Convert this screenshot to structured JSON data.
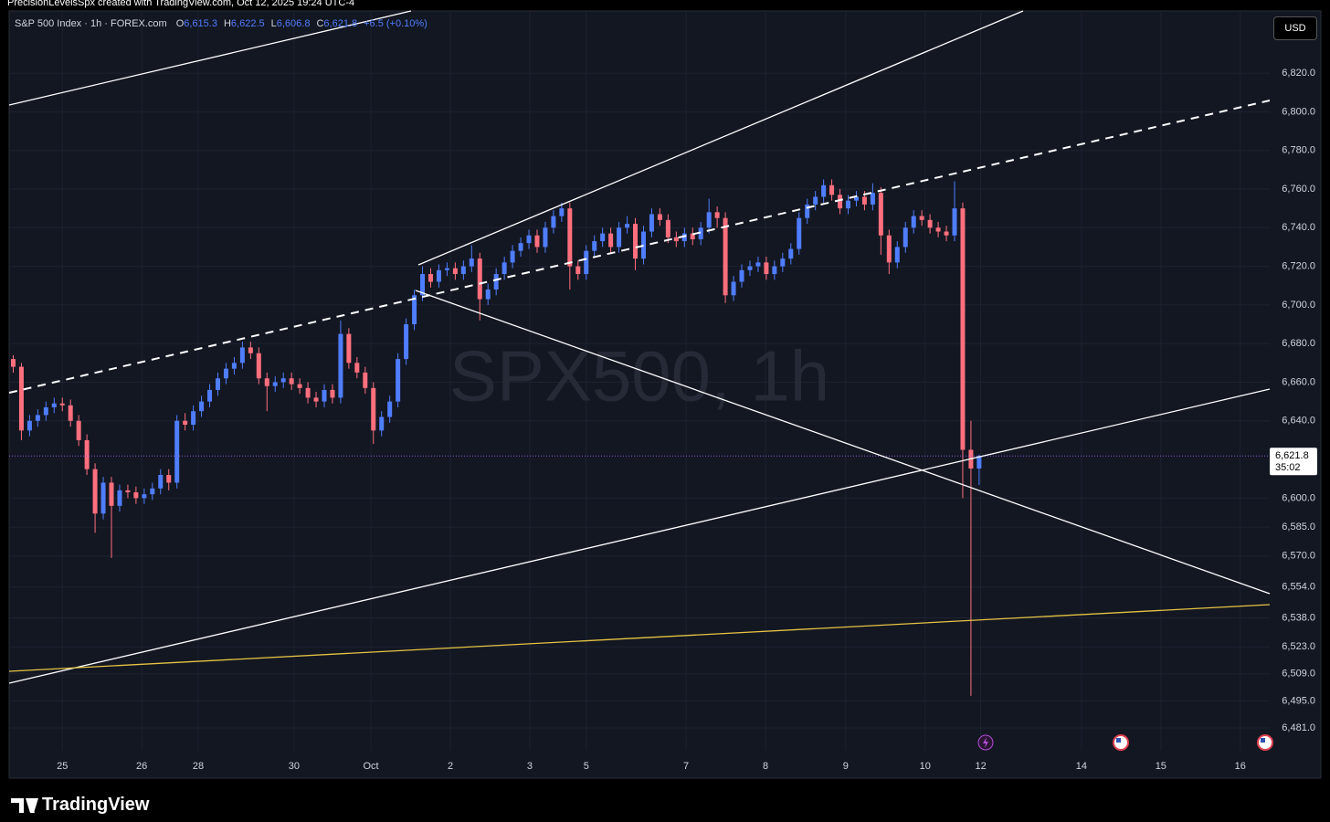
{
  "header": {
    "caption": "PrecisionLevelsSpx created with TradingView.com, Oct 12, 2025 19:24 UTC-4"
  },
  "legend": {
    "symbol": "S&P 500 Index · 1h · FOREX.com",
    "ohlc": [
      {
        "key": "O",
        "value": "6,615.3"
      },
      {
        "key": "H",
        "value": "6,622.5"
      },
      {
        "key": "L",
        "value": "6,606.8"
      },
      {
        "key": "C",
        "value": "6,621.8"
      }
    ],
    "change": "+6.5 (+0.10%)"
  },
  "currency": "USD",
  "watermark": "SPX500, 1h",
  "price_label": {
    "price": "6,621.8",
    "countdown": "35:02"
  },
  "footer": {
    "brand": "TradingView"
  },
  "chart_data": {
    "type": "candlestick",
    "up_color": "#4f7dff",
    "down_color": "#ff6f7d",
    "grid": true,
    "xlim": [
      -0.5,
      153.5
    ],
    "xticks": [
      {
        "value": 6,
        "label": "25"
      },
      {
        "value": 15.7,
        "label": "26"
      },
      {
        "value": 22.6,
        "label": "28"
      },
      {
        "value": 34.3,
        "label": "30"
      },
      {
        "value": 43.7,
        "label": "Oct"
      },
      {
        "value": 53.4,
        "label": "2"
      },
      {
        "value": 63.1,
        "label": "3"
      },
      {
        "value": 70,
        "label": "5"
      },
      {
        "value": 82.2,
        "label": "7"
      },
      {
        "value": 91.9,
        "label": "8"
      },
      {
        "value": 101.7,
        "label": "9"
      },
      {
        "value": 111.4,
        "label": "10"
      },
      {
        "value": 118.2,
        "label": "12"
      },
      {
        "value": 130.5,
        "label": "14"
      },
      {
        "value": 140.2,
        "label": "15"
      },
      {
        "value": 149.9,
        "label": "16"
      }
    ],
    "ylim": [
      6469.2,
      6852.2
    ],
    "yticks": [
      {
        "value": 6820,
        "label": "6,820.0"
      },
      {
        "value": 6800,
        "label": "6,800.0"
      },
      {
        "value": 6780,
        "label": "6,780.0"
      },
      {
        "value": 6760,
        "label": "6,760.0"
      },
      {
        "value": 6740,
        "label": "6,740.0"
      },
      {
        "value": 6720,
        "label": "6,720.0"
      },
      {
        "value": 6700,
        "label": "6,700.0"
      },
      {
        "value": 6680,
        "label": "6,680.0"
      },
      {
        "value": 6660,
        "label": "6,660.0"
      },
      {
        "value": 6640,
        "label": "6,640.0"
      },
      {
        "value": 6600,
        "label": "6,600.0"
      },
      {
        "value": 6585,
        "label": "6,585.0"
      },
      {
        "value": 6570,
        "label": "6,570.0"
      },
      {
        "value": 6554,
        "label": "6,554.0"
      },
      {
        "value": 6538,
        "label": "6,538.0"
      },
      {
        "value": 6523,
        "label": "6,523.0"
      },
      {
        "value": 6509,
        "label": "6,509.0"
      },
      {
        "value": 6495,
        "label": "6,495.0"
      },
      {
        "value": 6481,
        "label": "6,481.0"
      }
    ],
    "candles": [
      [
        6672,
        6674,
        6665,
        6668
      ],
      [
        6668,
        6670,
        6630,
        6635
      ],
      [
        6635,
        6643,
        6632,
        6640
      ],
      [
        6640,
        6646,
        6637,
        6643
      ],
      [
        6643,
        6650,
        6640,
        6647
      ],
      [
        6647,
        6652,
        6644,
        6649
      ],
      [
        6649,
        6652,
        6645,
        6648
      ],
      [
        6648,
        6651,
        6637,
        6640
      ],
      [
        6640,
        6643,
        6627,
        6630
      ],
      [
        6630,
        6633,
        6612,
        6615
      ],
      [
        6615,
        6618,
        6582,
        6592
      ],
      [
        6592,
        6611,
        6589,
        6608
      ],
      [
        6608,
        6611,
        6569,
        6596
      ],
      [
        6596,
        6607,
        6593,
        6604
      ],
      [
        6604,
        6607,
        6600,
        6603
      ],
      [
        6603,
        6606,
        6597,
        6600
      ],
      [
        6600,
        6605,
        6597,
        6602
      ],
      [
        6602,
        6608,
        6599,
        6605
      ],
      [
        6605,
        6615,
        6602,
        6612
      ],
      [
        6612,
        6615,
        6604,
        6608
      ],
      [
        6608,
        6643,
        6605,
        6640
      ],
      [
        6640,
        6644,
        6635,
        6638
      ],
      [
        6638,
        6648,
        6635,
        6645
      ],
      [
        6645,
        6653,
        6642,
        6650
      ],
      [
        6650,
        6659,
        6647,
        6656
      ],
      [
        6656,
        6665,
        6653,
        6662
      ],
      [
        6662,
        6670,
        6659,
        6667
      ],
      [
        6667,
        6673,
        6664,
        6670
      ],
      [
        6670,
        6681,
        6667,
        6678
      ],
      [
        6678,
        6681,
        6672,
        6675
      ],
      [
        6675,
        6678,
        6659,
        6662
      ],
      [
        6662,
        6665,
        6645,
        6658
      ],
      [
        6658,
        6663,
        6655,
        6660
      ],
      [
        6660,
        6665,
        6657,
        6662
      ],
      [
        6662,
        6665,
        6656,
        6659
      ],
      [
        6659,
        6662,
        6654,
        6657
      ],
      [
        6657,
        6660,
        6649,
        6652
      ],
      [
        6652,
        6655,
        6647,
        6650
      ],
      [
        6650,
        6659,
        6647,
        6656
      ],
      [
        6656,
        6659,
        6649,
        6652
      ],
      [
        6652,
        6692,
        6649,
        6685
      ],
      [
        6685,
        6688,
        6667,
        6670
      ],
      [
        6670,
        6673,
        6662,
        6665
      ],
      [
        6665,
        6668,
        6654,
        6657
      ],
      [
        6657,
        6660,
        6628,
        6635
      ],
      [
        6635,
        6645,
        6632,
        6642
      ],
      [
        6642,
        6653,
        6639,
        6650
      ],
      [
        6650,
        6675,
        6647,
        6672
      ],
      [
        6672,
        6693,
        6669,
        6690
      ],
      [
        6690,
        6708,
        6687,
        6705
      ],
      [
        6705,
        6720,
        6702,
        6716
      ],
      [
        6716,
        6719,
        6709,
        6712
      ],
      [
        6712,
        6721,
        6709,
        6718
      ],
      [
        6718,
        6722,
        6715,
        6719
      ],
      [
        6719,
        6722,
        6713,
        6716
      ],
      [
        6716,
        6723,
        6713,
        6720
      ],
      [
        6720,
        6731,
        6717,
        6724
      ],
      [
        6724,
        6727,
        6692,
        6703
      ],
      [
        6703,
        6711,
        6700,
        6708
      ],
      [
        6708,
        6719,
        6705,
        6716
      ],
      [
        6716,
        6725,
        6713,
        6722
      ],
      [
        6722,
        6731,
        6719,
        6728
      ],
      [
        6728,
        6735,
        6725,
        6732
      ],
      [
        6732,
        6739,
        6729,
        6736
      ],
      [
        6736,
        6739,
        6727,
        6730
      ],
      [
        6730,
        6743,
        6727,
        6740
      ],
      [
        6740,
        6749,
        6737,
        6746
      ],
      [
        6746,
        6753,
        6743,
        6750
      ],
      [
        6750,
        6753,
        6708,
        6720
      ],
      [
        6720,
        6723,
        6713,
        6716
      ],
      [
        6716,
        6731,
        6713,
        6728
      ],
      [
        6728,
        6736,
        6725,
        6733
      ],
      [
        6733,
        6740,
        6730,
        6737
      ],
      [
        6737,
        6740,
        6727,
        6730
      ],
      [
        6730,
        6743,
        6727,
        6740
      ],
      [
        6740,
        6746,
        6737,
        6742
      ],
      [
        6742,
        6745,
        6718,
        6724
      ],
      [
        6724,
        6741,
        6721,
        6738
      ],
      [
        6738,
        6750,
        6735,
        6747
      ],
      [
        6747,
        6750,
        6741,
        6744
      ],
      [
        6744,
        6747,
        6732,
        6735
      ],
      [
        6735,
        6738,
        6730,
        6733
      ],
      [
        6733,
        6740,
        6730,
        6737
      ],
      [
        6737,
        6740,
        6731,
        6734
      ],
      [
        6734,
        6743,
        6731,
        6740
      ],
      [
        6740,
        6755,
        6737,
        6748
      ],
      [
        6748,
        6751,
        6740,
        6745
      ],
      [
        6745,
        6748,
        6701,
        6705
      ],
      [
        6705,
        6715,
        6702,
        6712
      ],
      [
        6712,
        6721,
        6709,
        6718
      ],
      [
        6718,
        6723,
        6715,
        6720
      ],
      [
        6720,
        6725,
        6717,
        6722
      ],
      [
        6722,
        6725,
        6713,
        6716
      ],
      [
        6716,
        6723,
        6713,
        6720
      ],
      [
        6720,
        6727,
        6717,
        6724
      ],
      [
        6724,
        6732,
        6721,
        6729
      ],
      [
        6729,
        6748,
        6726,
        6745
      ],
      [
        6745,
        6755,
        6742,
        6752
      ],
      [
        6752,
        6759,
        6749,
        6756
      ],
      [
        6756,
        6765,
        6753,
        6762
      ],
      [
        6762,
        6765,
        6754,
        6757
      ],
      [
        6757,
        6760,
        6747,
        6750
      ],
      [
        6750,
        6757,
        6747,
        6754
      ],
      [
        6754,
        6759,
        6751,
        6756
      ],
      [
        6756,
        6759,
        6749,
        6752
      ],
      [
        6752,
        6763,
        6749,
        6758
      ],
      [
        6758,
        6761,
        6726,
        6736
      ],
      [
        6736,
        6739,
        6716,
        6722
      ],
      [
        6722,
        6733,
        6719,
        6730
      ],
      [
        6730,
        6743,
        6727,
        6740
      ],
      [
        6740,
        6749,
        6737,
        6746
      ],
      [
        6746,
        6749,
        6741,
        6744
      ],
      [
        6744,
        6747,
        6737,
        6740
      ],
      [
        6740,
        6743,
        6735,
        6738
      ],
      [
        6738,
        6741,
        6733,
        6736
      ],
      [
        6736,
        6764,
        6733,
        6750
      ],
      [
        6750,
        6753,
        6600,
        6625
      ],
      [
        6625,
        6640,
        6497.6,
        6615.3
      ],
      [
        6615.3,
        6622.5,
        6606.8,
        6621.8
      ]
    ]
  }
}
